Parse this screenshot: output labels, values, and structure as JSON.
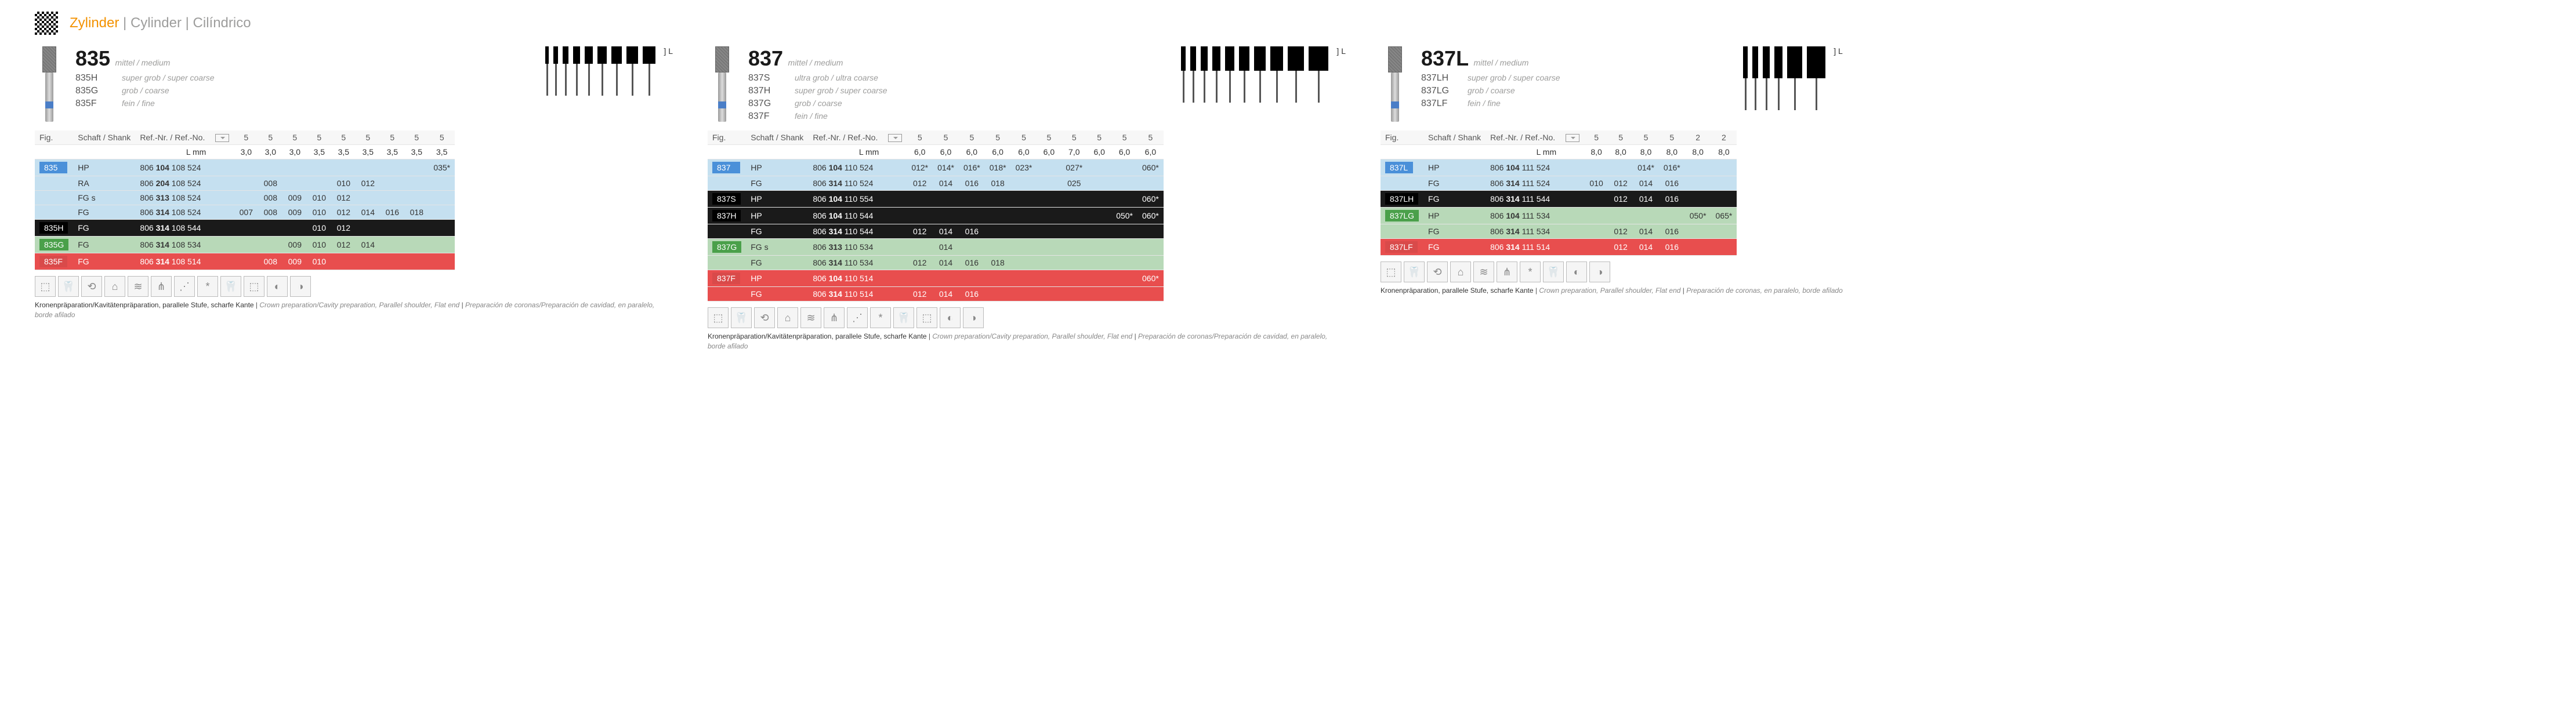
{
  "header": {
    "word1": "Zylinder",
    "word2": "Cylinder",
    "word3": "Cilíndrico",
    "sep": " | "
  },
  "sections": [
    {
      "id": "835",
      "main_code": "835",
      "grain": "mittel / medium",
      "variants": [
        {
          "code": "835H",
          "desc": "super grob / super coarse"
        },
        {
          "code": "835G",
          "desc": "grob / coarse"
        },
        {
          "code": "835F",
          "desc": "fein / fine"
        }
      ],
      "silhouette_widths": [
        6,
        8,
        10,
        12,
        14,
        16,
        18,
        20,
        22
      ],
      "silhouette_height": 30,
      "cols": [
        "5",
        "5",
        "5",
        "5",
        "5",
        "5",
        "5",
        "5",
        "5"
      ],
      "l_mm": [
        "3,0",
        "3,0",
        "3,0",
        "3,5",
        "3,5",
        "3,5",
        "3,5",
        "3,5",
        "3,5"
      ],
      "rows": [
        {
          "tag": "835",
          "tag_color": "tag-blue",
          "row_class": "row-blue",
          "shank": "HP",
          "ref": [
            "806 ",
            "104",
            " 108 524"
          ],
          "vals": [
            "",
            "",
            "",
            "",
            "",
            "",
            "",
            "",
            "035*"
          ]
        },
        {
          "tag": "",
          "row_class": "row-blue",
          "shank": "RA",
          "ref": [
            "806 ",
            "204",
            " 108 524"
          ],
          "vals": [
            "",
            "008",
            "",
            "",
            "010",
            "012",
            "",
            "",
            ""
          ]
        },
        {
          "tag": "",
          "row_class": "row-blue",
          "shank": "FG s",
          "ref": [
            "806 ",
            "313",
            " 108 524"
          ],
          "vals": [
            "",
            "008",
            "009",
            "010",
            "012",
            "",
            "",
            "",
            ""
          ]
        },
        {
          "tag": "",
          "row_class": "row-blue",
          "shank": "FG",
          "ref": [
            "806 ",
            "314",
            " 108 524"
          ],
          "vals": [
            "007",
            "008",
            "009",
            "010",
            "012",
            "014",
            "016",
            "018",
            ""
          ]
        },
        {
          "tag": "835H",
          "tag_color": "tag-black",
          "row_class": "row-black",
          "shank": "FG",
          "ref": [
            "806 ",
            "314",
            " 108 544"
          ],
          "vals": [
            "",
            "",
            "",
            "010",
            "012",
            "",
            "",
            "",
            ""
          ]
        },
        {
          "tag": "835G",
          "tag_color": "tag-green",
          "row_class": "row-green",
          "shank": "FG",
          "ref": [
            "806 ",
            "314",
            " 108 534"
          ],
          "vals": [
            "",
            "",
            "009",
            "010",
            "012",
            "014",
            "",
            "",
            ""
          ]
        },
        {
          "tag": "835F",
          "tag_color": "tag-red",
          "row_class": "row-red",
          "shank": "FG",
          "ref": [
            "806 ",
            "314",
            " 108 514"
          ],
          "vals": [
            "",
            "008",
            "009",
            "010",
            "",
            "",
            "",
            "",
            ""
          ]
        }
      ],
      "icons": [
        "⬚",
        "🦷",
        "⟲",
        "⌂",
        "≋",
        "⋔",
        "⋰",
        "*",
        "🦷",
        "⬚",
        "◐",
        "◑"
      ],
      "footer": {
        "de": "Kronenpräparation/Kavitätenpräparation, parallele Stufe, scharfe Kante",
        "en": "Crown preparation/Cavity preparation, Parallel shoulder, Flat end",
        "es": "Preparación de coronas/Preparación de cavidad, en paralelo, borde afilado"
      }
    },
    {
      "id": "837",
      "main_code": "837",
      "grain": "mittel / medium",
      "variants": [
        {
          "code": "837S",
          "desc": "ultra grob / ultra coarse"
        },
        {
          "code": "837H",
          "desc": "super grob / super coarse"
        },
        {
          "code": "837G",
          "desc": "grob / coarse"
        },
        {
          "code": "837F",
          "desc": "fein / fine"
        }
      ],
      "silhouette_widths": [
        8,
        10,
        12,
        14,
        16,
        18,
        20,
        22,
        28,
        34
      ],
      "silhouette_height": 42,
      "cols": [
        "5",
        "5",
        "5",
        "5",
        "5",
        "5",
        "5",
        "5",
        "5",
        "5"
      ],
      "l_mm": [
        "6,0",
        "6,0",
        "6,0",
        "6,0",
        "6,0",
        "6,0",
        "7,0",
        "6,0",
        "6,0",
        "6,0"
      ],
      "rows": [
        {
          "tag": "837",
          "tag_color": "tag-blue",
          "row_class": "row-blue",
          "shank": "HP",
          "ref": [
            "806 ",
            "104",
            " 110 524"
          ],
          "vals": [
            "012*",
            "014*",
            "016*",
            "018*",
            "023*",
            "",
            "027*",
            "",
            "",
            "060*"
          ]
        },
        {
          "tag": "",
          "row_class": "row-blue",
          "shank": "FG",
          "ref": [
            "806 ",
            "314",
            " 110 524"
          ],
          "vals": [
            "012",
            "014",
            "016",
            "018",
            "",
            "",
            "025",
            "",
            "",
            ""
          ]
        },
        {
          "tag": "837S",
          "tag_color": "tag-black",
          "row_class": "row-black",
          "shank": "HP",
          "ref": [
            "806 ",
            "104",
            " 110 554"
          ],
          "vals": [
            "",
            "",
            "",
            "",
            "",
            "",
            "",
            "",
            "",
            "060*"
          ]
        },
        {
          "tag": "837H",
          "tag_color": "tag-black",
          "row_class": "row-black",
          "shank": "HP",
          "ref": [
            "806 ",
            "104",
            " 110 544"
          ],
          "vals": [
            "",
            "",
            "",
            "",
            "",
            "",
            "",
            "",
            "050*",
            "060*"
          ]
        },
        {
          "tag": "",
          "row_class": "row-black",
          "shank": "FG",
          "ref": [
            "806 ",
            "314",
            " 110 544"
          ],
          "vals": [
            "012",
            "014",
            "016",
            "",
            "",
            "",
            "",
            "",
            "",
            ""
          ]
        },
        {
          "tag": "837G",
          "tag_color": "tag-green",
          "row_class": "row-green",
          "shank": "FG s",
          "ref": [
            "806 ",
            "313",
            " 110 534"
          ],
          "vals": [
            "",
            "014",
            "",
            "",
            "",
            "",
            "",
            "",
            "",
            ""
          ]
        },
        {
          "tag": "",
          "row_class": "row-green",
          "shank": "FG",
          "ref": [
            "806 ",
            "314",
            " 110 534"
          ],
          "vals": [
            "012",
            "014",
            "016",
            "018",
            "",
            "",
            "",
            "",
            "",
            ""
          ]
        },
        {
          "tag": "837F",
          "tag_color": "tag-red",
          "row_class": "row-red",
          "shank": "HP",
          "ref": [
            "806 ",
            "104",
            " 110 514"
          ],
          "vals": [
            "",
            "",
            "",
            "",
            "",
            "",
            "",
            "",
            "",
            "060*"
          ]
        },
        {
          "tag": "",
          "row_class": "row-red",
          "shank": "FG",
          "ref": [
            "806 ",
            "314",
            " 110 514"
          ],
          "vals": [
            "012",
            "014",
            "016",
            "",
            "",
            "",
            "",
            "",
            "",
            ""
          ]
        }
      ],
      "icons": [
        "⬚",
        "🦷",
        "⟲",
        "⌂",
        "≋",
        "⋔",
        "⋰",
        "*",
        "🦷",
        "⬚",
        "◐",
        "◑"
      ],
      "footer": {
        "de": "Kronenpräparation/Kavitätenpräparation, parallele Stufe, scharfe Kante",
        "en": "Crown preparation/Cavity preparation, Parallel shoulder, Flat end",
        "es": "Preparación de coronas/Preparación de cavidad, en paralelo, borde afilado"
      }
    },
    {
      "id": "837L",
      "main_code": "837L",
      "grain": "mittel / medium",
      "variants": [
        {
          "code": "837LH",
          "desc": "super grob / super coarse"
        },
        {
          "code": "837LG",
          "desc": "grob / coarse"
        },
        {
          "code": "837LF",
          "desc": "fein / fine"
        }
      ],
      "silhouette_widths": [
        8,
        10,
        12,
        14,
        26,
        32
      ],
      "silhouette_height": 55,
      "cols": [
        "5",
        "5",
        "5",
        "5",
        "2",
        "2"
      ],
      "l_mm": [
        "8,0",
        "8,0",
        "8,0",
        "8,0",
        "8,0",
        "8,0"
      ],
      "rows": [
        {
          "tag": "837L",
          "tag_color": "tag-blue",
          "row_class": "row-blue",
          "shank": "HP",
          "ref": [
            "806 ",
            "104",
            " 111 524"
          ],
          "vals": [
            "",
            "",
            "014*",
            "016*",
            "",
            ""
          ]
        },
        {
          "tag": "",
          "row_class": "row-blue",
          "shank": "FG",
          "ref": [
            "806 ",
            "314",
            " 111 524"
          ],
          "vals": [
            "010",
            "012",
            "014",
            "016",
            "",
            ""
          ]
        },
        {
          "tag": "837LH",
          "tag_color": "tag-black",
          "row_class": "row-black",
          "shank": "FG",
          "ref": [
            "806 ",
            "314",
            " 111 544"
          ],
          "vals": [
            "",
            "012",
            "014",
            "016",
            "",
            ""
          ]
        },
        {
          "tag": "837LG",
          "tag_color": "tag-green",
          "row_class": "row-green",
          "shank": "HP",
          "ref": [
            "806 ",
            "104",
            " 111 534"
          ],
          "vals": [
            "",
            "",
            "",
            "",
            "050*",
            "065*"
          ]
        },
        {
          "tag": "",
          "row_class": "row-green",
          "shank": "FG",
          "ref": [
            "806 ",
            "314",
            " 111 534"
          ],
          "vals": [
            "",
            "012",
            "014",
            "016",
            "",
            ""
          ]
        },
        {
          "tag": "837LF",
          "tag_color": "tag-red",
          "row_class": "row-red",
          "shank": "FG",
          "ref": [
            "806 ",
            "314",
            " 111 514"
          ],
          "vals": [
            "",
            "012",
            "014",
            "016",
            "",
            ""
          ]
        }
      ],
      "icons": [
        "⬚",
        "🦷",
        "⟲",
        "⌂",
        "≋",
        "⋔",
        "*",
        "🦷",
        "◐",
        "◑"
      ],
      "footer": {
        "de": "Kronenpräparation, parallele Stufe, scharfe Kante",
        "en": "Crown preparation, Parallel shoulder, Flat end",
        "es": "Preparación de coronas, en paralelo, borde afilado"
      }
    }
  ],
  "labels": {
    "fig": "Fig.",
    "shank": "Schaft / Shank",
    "ref": "Ref.-Nr. / Ref.-No.",
    "lmm": "L mm"
  }
}
